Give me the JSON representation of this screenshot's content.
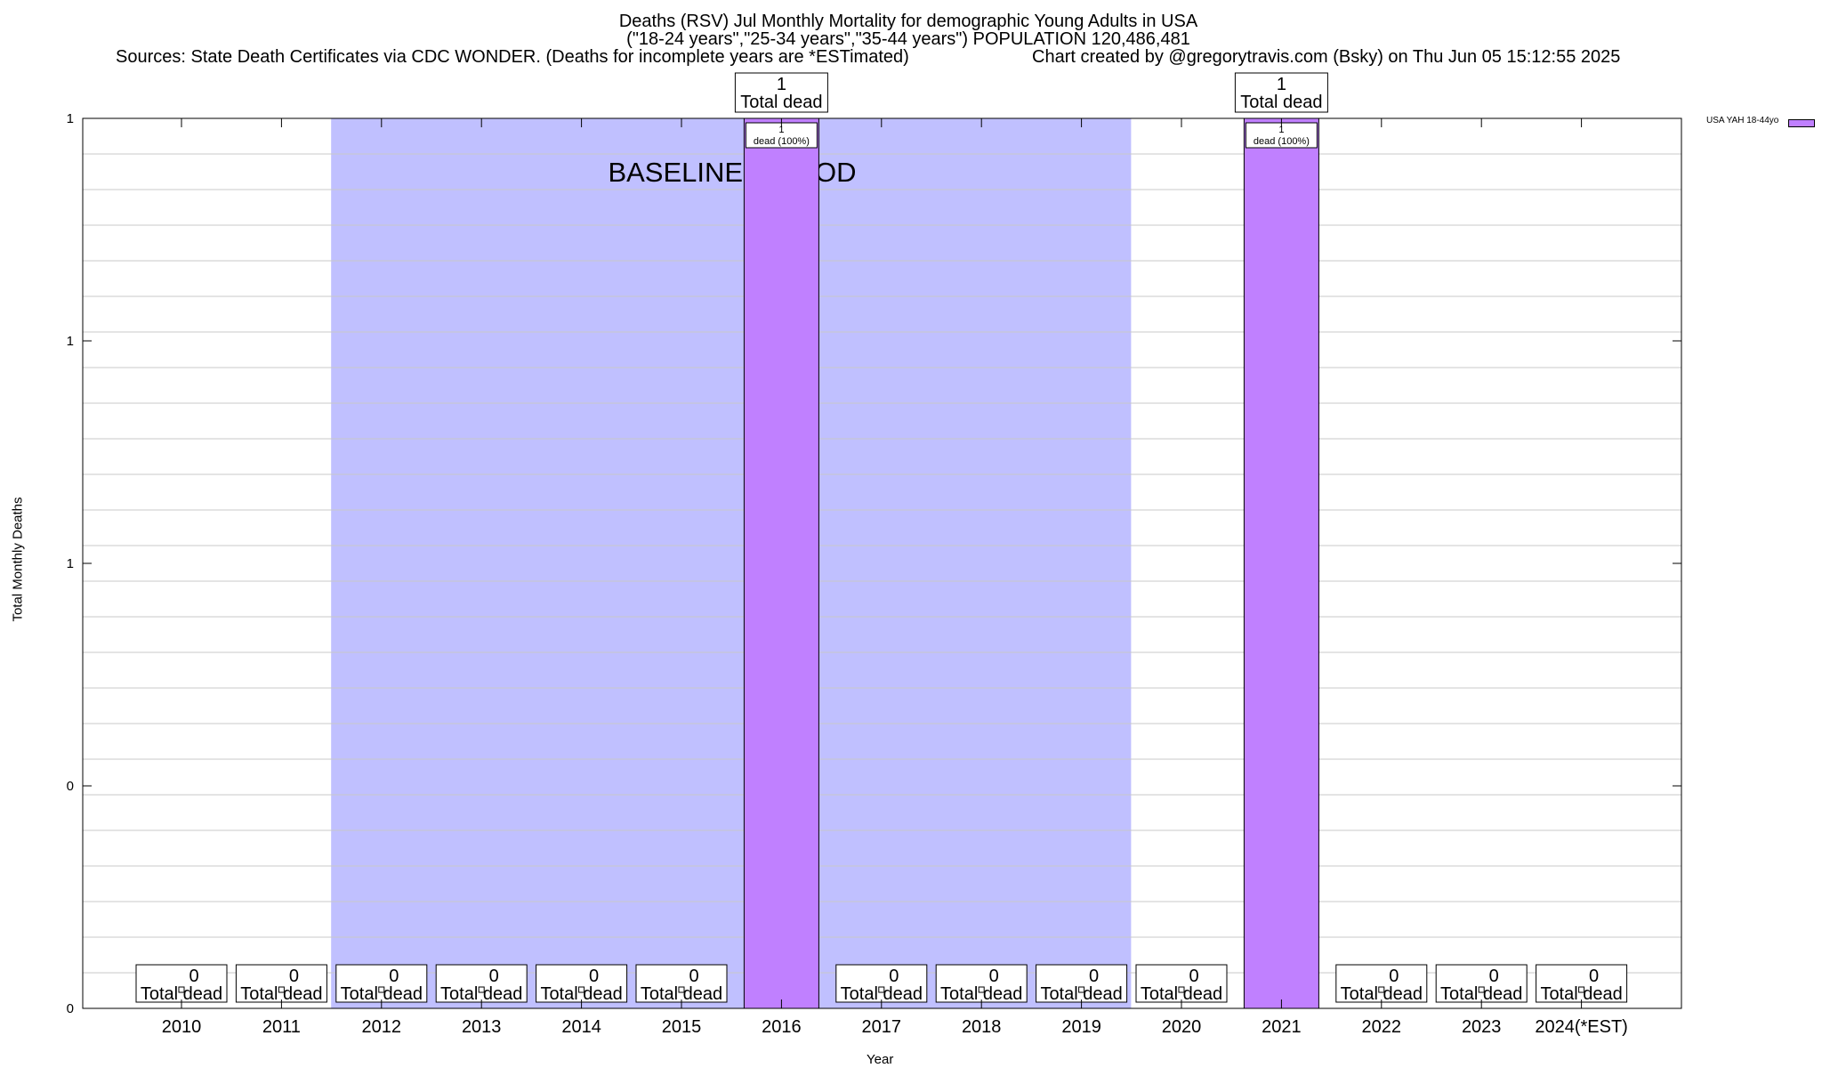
{
  "header": {
    "title_line1": "Deaths (RSV) Jul Monthly Mortality for demographic Young Adults in USA",
    "title_line2": "(\"18-24 years\",\"25-34 years\",\"35-44 years\") POPULATION 120,486,481",
    "sources": "Sources: State Death Certificates via CDC WONDER. (Deaths for incomplete years are *ESTimated)",
    "credit": "Chart created by @gregorytravis.com (Bsky) on Thu Jun 05 15:12:55 2025"
  },
  "chart_data": {
    "type": "bar",
    "title": "Deaths (RSV) Jul Monthly Mortality for demographic Young Adults in USA",
    "xlabel": "Year",
    "ylabel": "Total Monthly Deaths",
    "categories": [
      "2010",
      "2011",
      "2012",
      "2013",
      "2014",
      "2015",
      "2016",
      "2017",
      "2018",
      "2019",
      "2020",
      "2021",
      "2022",
      "2023",
      "2024(*EST)"
    ],
    "series": [
      {
        "name": "USA YAH 18-44yo",
        "color": "#c080ff",
        "values": [
          0,
          0,
          0,
          0,
          0,
          0,
          1,
          0,
          0,
          0,
          0,
          1,
          0,
          0,
          0
        ]
      }
    ],
    "total_labels": [
      "0",
      "0",
      "0",
      "0",
      "0",
      "0",
      "1",
      "0",
      "0",
      "0",
      "0",
      "1",
      "0",
      "0",
      "0"
    ],
    "total_suffix": "Total dead",
    "bar_labels": [
      "",
      "",
      "",
      "",
      "",
      "",
      "1\ndead (100%)",
      "",
      "",
      "",
      "",
      "1\ndead (100%)",
      "",
      "",
      ""
    ],
    "ylim": [
      0,
      1
    ],
    "ytick_labels": [
      "0",
      "0",
      "1",
      "1",
      "1"
    ],
    "grid": true,
    "legend_position": "top-right",
    "baseline_period": {
      "label": "BASELINE PERIOD",
      "from": "2012",
      "to": "2019",
      "color": "#c0c0ff"
    }
  }
}
